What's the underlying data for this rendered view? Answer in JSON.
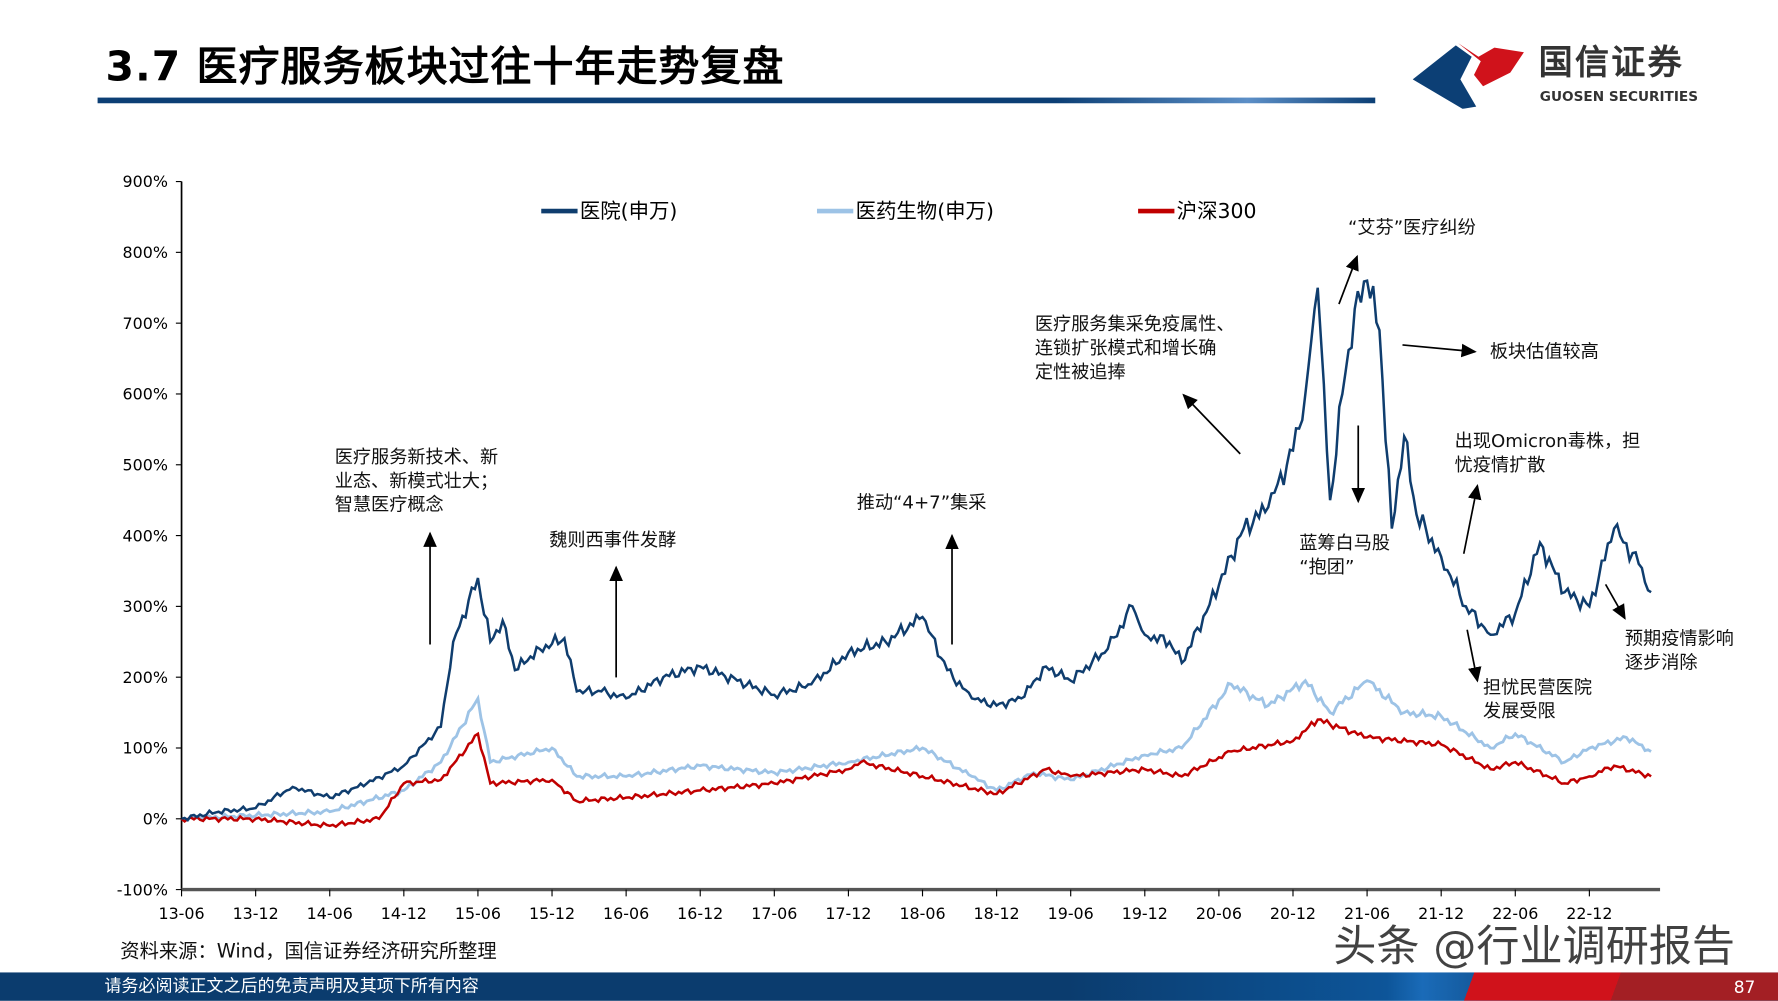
{
  "header": {
    "title": "3.7 医疗服务板块过往十年走势复盘",
    "logo_cn": "国信证券",
    "logo_en": "GUOSEN SECURITIES"
  },
  "colors": {
    "hospital": "#0f3d6e",
    "pharma": "#9dc3e6",
    "hs300": "#c00000",
    "brand_blue": "#0c3f75",
    "brand_red": "#d0121b"
  },
  "chart_data": {
    "type": "line",
    "ylim": [
      -100,
      900
    ],
    "yticks": [
      "-100%",
      "0%",
      "100%",
      "200%",
      "300%",
      "400%",
      "500%",
      "600%",
      "700%",
      "800%",
      "900%"
    ],
    "xticks": [
      "13-06",
      "13-12",
      "14-06",
      "14-12",
      "15-06",
      "15-12",
      "16-06",
      "16-12",
      "17-06",
      "17-12",
      "18-06",
      "18-12",
      "19-06",
      "19-12",
      "20-06",
      "20-12",
      "21-06",
      "21-12",
      "22-06",
      "22-12"
    ],
    "legend_position": "top",
    "grid": false,
    "series": [
      {
        "name": "医院(申万)",
        "color": "#0f3d6e",
        "data": [
          [
            "2013-06",
            0
          ],
          [
            "2013-09",
            10
          ],
          [
            "2013-12",
            15
          ],
          [
            "2014-03",
            45
          ],
          [
            "2014-06",
            30
          ],
          [
            "2014-09",
            50
          ],
          [
            "2014-12",
            75
          ],
          [
            "2015-03",
            130
          ],
          [
            "2015-04",
            250
          ],
          [
            "2015-06",
            340
          ],
          [
            "2015-07",
            250
          ],
          [
            "2015-08",
            280
          ],
          [
            "2015-09",
            210
          ],
          [
            "2015-11",
            240
          ],
          [
            "2016-01",
            255
          ],
          [
            "2016-02",
            180
          ],
          [
            "2016-04",
            180
          ],
          [
            "2016-06",
            170
          ],
          [
            "2016-09",
            200
          ],
          [
            "2016-12",
            215
          ],
          [
            "2017-03",
            195
          ],
          [
            "2017-06",
            175
          ],
          [
            "2017-09",
            190
          ],
          [
            "2017-12",
            235
          ],
          [
            "2018-03",
            250
          ],
          [
            "2018-06",
            285
          ],
          [
            "2018-08",
            210
          ],
          [
            "2018-10",
            170
          ],
          [
            "2018-12",
            160
          ],
          [
            "2019-02",
            170
          ],
          [
            "2019-04",
            215
          ],
          [
            "2019-06",
            195
          ],
          [
            "2019-09",
            240
          ],
          [
            "2019-11",
            300
          ],
          [
            "2019-12",
            260
          ],
          [
            "2020-02",
            250
          ],
          [
            "2020-03",
            220
          ],
          [
            "2020-06",
            330
          ],
          [
            "2020-08",
            410
          ],
          [
            "2020-10",
            440
          ],
          [
            "2020-12",
            520
          ],
          [
            "2021-01",
            600
          ],
          [
            "2021-02",
            750
          ],
          [
            "2021-03",
            450
          ],
          [
            "2021-04",
            600
          ],
          [
            "2021-05",
            720
          ],
          [
            "2021-06",
            760
          ],
          [
            "2021-07",
            690
          ],
          [
            "2021-08",
            410
          ],
          [
            "2021-09",
            540
          ],
          [
            "2021-10",
            430
          ],
          [
            "2021-12",
            370
          ],
          [
            "2022-02",
            300
          ],
          [
            "2022-04",
            260
          ],
          [
            "2022-06",
            290
          ],
          [
            "2022-08",
            390
          ],
          [
            "2022-10",
            320
          ],
          [
            "2022-12",
            300
          ],
          [
            "2023-02",
            410
          ],
          [
            "2023-04",
            360
          ],
          [
            "2023-05",
            320
          ]
        ]
      },
      {
        "name": "医药生物(申万)",
        "color": "#9dc3e6",
        "data": [
          [
            "2013-06",
            0
          ],
          [
            "2014-06",
            10
          ],
          [
            "2014-12",
            40
          ],
          [
            "2015-03",
            80
          ],
          [
            "2015-06",
            170
          ],
          [
            "2015-07",
            80
          ],
          [
            "2015-12",
            100
          ],
          [
            "2016-02",
            60
          ],
          [
            "2016-06",
            60
          ],
          [
            "2016-12",
            75
          ],
          [
            "2017-06",
            65
          ],
          [
            "2017-12",
            80
          ],
          [
            "2018-06",
            100
          ],
          [
            "2018-10",
            60
          ],
          [
            "2018-12",
            40
          ],
          [
            "2019-03",
            65
          ],
          [
            "2019-06",
            55
          ],
          [
            "2019-12",
            90
          ],
          [
            "2020-03",
            100
          ],
          [
            "2020-07",
            190
          ],
          [
            "2020-10",
            160
          ],
          [
            "2021-01",
            195
          ],
          [
            "2021-03",
            150
          ],
          [
            "2021-06",
            195
          ],
          [
            "2021-09",
            150
          ],
          [
            "2021-12",
            145
          ],
          [
            "2022-04",
            100
          ],
          [
            "2022-06",
            120
          ],
          [
            "2022-10",
            80
          ],
          [
            "2022-12",
            100
          ],
          [
            "2023-03",
            115
          ],
          [
            "2023-05",
            95
          ]
        ]
      },
      {
        "name": "沪深300",
        "color": "#c00000",
        "data": [
          [
            "2013-06",
            0
          ],
          [
            "2013-12",
            0
          ],
          [
            "2014-06",
            -10
          ],
          [
            "2014-10",
            0
          ],
          [
            "2014-12",
            50
          ],
          [
            "2015-03",
            55
          ],
          [
            "2015-06",
            120
          ],
          [
            "2015-07",
            50
          ],
          [
            "2015-12",
            55
          ],
          [
            "2016-02",
            25
          ],
          [
            "2016-06",
            30
          ],
          [
            "2016-12",
            40
          ],
          [
            "2017-06",
            50
          ],
          [
            "2017-12",
            70
          ],
          [
            "2018-01",
            80
          ],
          [
            "2018-06",
            60
          ],
          [
            "2018-12",
            35
          ],
          [
            "2019-04",
            70
          ],
          [
            "2019-06",
            60
          ],
          [
            "2019-12",
            70
          ],
          [
            "2020-03",
            60
          ],
          [
            "2020-07",
            95
          ],
          [
            "2020-12",
            110
          ],
          [
            "2021-02",
            140
          ],
          [
            "2021-06",
            115
          ],
          [
            "2021-12",
            105
          ],
          [
            "2022-04",
            70
          ],
          [
            "2022-06",
            80
          ],
          [
            "2022-10",
            50
          ],
          [
            "2022-12",
            60
          ],
          [
            "2023-02",
            75
          ],
          [
            "2023-05",
            60
          ]
        ]
      }
    ],
    "annotations": [
      {
        "lines": [
          "医疗服务新技术、新",
          "业态、新模式壮大；",
          "智慧医疗概念"
        ]
      },
      {
        "lines": [
          "魏则西事件发酵"
        ]
      },
      {
        "lines": [
          "推动“4+7”集采"
        ]
      },
      {
        "lines": [
          "医疗服务集采免疫属性、",
          "连锁扩张模式和增长确",
          "定性被追捧"
        ]
      },
      {
        "lines": [
          "“艾芬”医疗纠纷"
        ]
      },
      {
        "lines": [
          "板块估值较高"
        ]
      },
      {
        "lines": [
          "蓝筹白马股",
          "“抱团”"
        ]
      },
      {
        "lines": [
          "出现Omicron毒株，担",
          "忧疫情扩散"
        ]
      },
      {
        "lines": [
          "担忧民营医院",
          "发展受限"
        ]
      },
      {
        "lines": [
          "预期疫情影响",
          "逐步消除"
        ]
      }
    ]
  },
  "source": "资料来源：Wind，国信证券经济研究所整理",
  "watermark": "头条 @行业调研报告",
  "footer": {
    "disclaimer": "请务必阅读正文之后的免责声明及其项下所有内容",
    "page": "87"
  }
}
